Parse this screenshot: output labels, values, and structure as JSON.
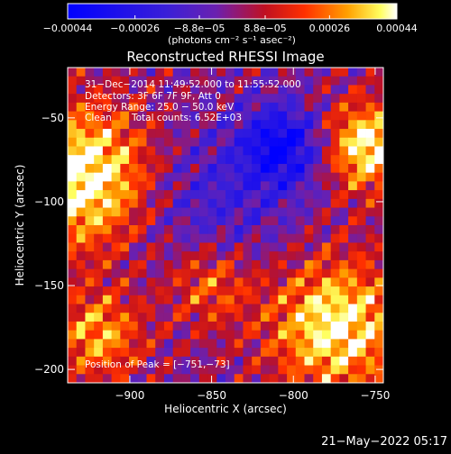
{
  "chart_data": {
    "type": "heatmap",
    "title": "Reconstructed RHESSI Image",
    "xlabel": "Heliocentric X (arcsec)",
    "ylabel": "Heliocentric Y (arcsec)",
    "xlim": [
      -938,
      -745
    ],
    "ylim": [
      -208,
      -20
    ],
    "x_ticks": [
      -900,
      -850,
      -800,
      -750
    ],
    "y_ticks": [
      -200,
      -150,
      -100,
      -50
    ],
    "x_tick_labels": [
      "−900",
      "−850",
      "−800",
      "−750"
    ],
    "y_tick_labels": [
      "−200",
      "−150",
      "−100",
      "−50"
    ],
    "colorbar": {
      "range": [
        -0.00044,
        0.00044
      ],
      "tick_values": [
        -0.00044,
        -0.00026,
        -8.8e-05,
        8.8e-05,
        0.00026,
        0.00044
      ],
      "tick_labels": [
        "−0.00044",
        "−0.00026",
        "−8.8e−05",
        "8.8e−05",
        "0.00026",
        "0.00044"
      ],
      "unit_label": "(photons cm⁻² s⁻¹ asec⁻²)"
    },
    "annotations": {
      "time_range": "31−Dec−2014 11:49:52.000 to 11:55:52.000",
      "detectors": "Detectors: 3F 6F 7F 9F, Att 0",
      "energy": "Energy Range: 25.0 − 50.0 keV",
      "method": "Clean",
      "total_counts": "Total counts: 6.52E+03",
      "peak": "Position of Peak = [−751,−73]"
    },
    "peak_position": [
      -751,
      -73
    ]
  },
  "footer": {
    "date": "21−May−2022 05:17"
  }
}
